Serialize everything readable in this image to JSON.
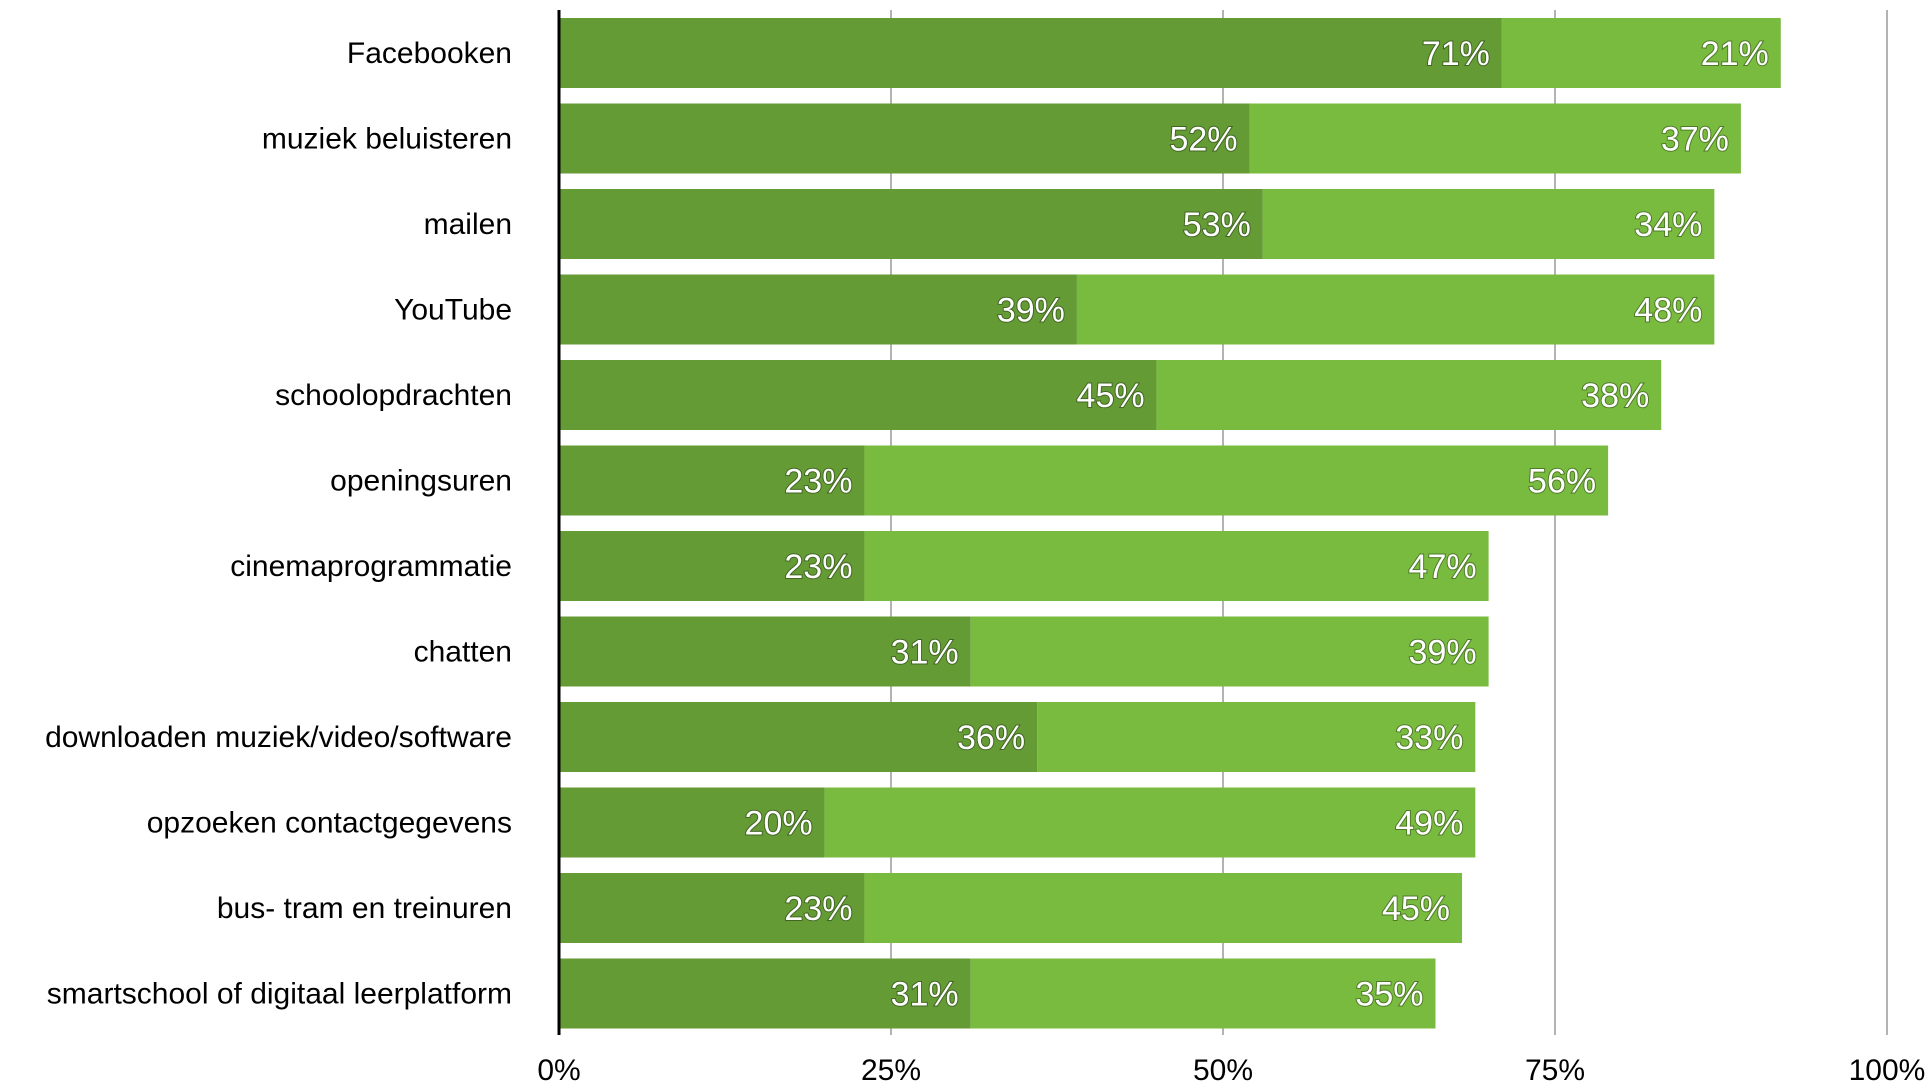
{
  "chart_data": {
    "type": "bar",
    "orientation": "horizontal",
    "stacked": true,
    "title": "",
    "xlabel": "",
    "ylabel": "",
    "xlim": [
      0,
      100
    ],
    "x_ticks": [
      0,
      25,
      50,
      75,
      100
    ],
    "x_tick_labels": [
      "0%",
      "25%",
      "50%",
      "75%",
      "100%"
    ],
    "grid": true,
    "categories": [
      "Facebooken",
      "muziek beluisteren",
      "mailen",
      "YouTube",
      "schoolopdrachten",
      "openingsuren",
      "cinemaprogrammatie",
      "chatten",
      "downloaden muziek/video/software",
      "opzoeken contactgegevens",
      "bus- tram en treinuren",
      "smartschool of digitaal leerplatform"
    ],
    "series": [
      {
        "color": "#649b35",
        "values": [
          71,
          52,
          53,
          39,
          45,
          23,
          23,
          31,
          36,
          20,
          23,
          31
        ],
        "value_labels": [
          "71%",
          "52%",
          "53%",
          "39%",
          "45%",
          "23%",
          "23%",
          "31%",
          "36%",
          "20%",
          "23%",
          "31%"
        ]
      },
      {
        "color": "#79bb3e",
        "values": [
          21,
          37,
          34,
          48,
          38,
          56,
          47,
          39,
          33,
          49,
          45,
          35
        ],
        "value_labels": [
          "21%",
          "37%",
          "34%",
          "48%",
          "38%",
          "56%",
          "47%",
          "39%",
          "33%",
          "49%",
          "45%",
          "35%"
        ]
      }
    ]
  }
}
